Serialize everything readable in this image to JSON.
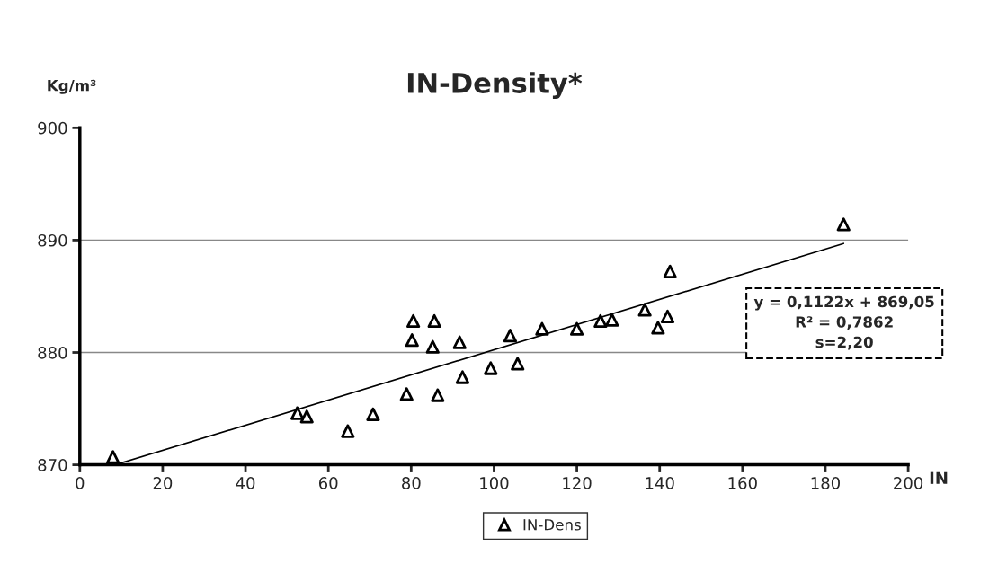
{
  "chart_data": {
    "type": "scatter",
    "title": "IN-Density*",
    "xlabel": "IN",
    "ylabel": "Kg/m³",
    "xlim": [
      0,
      200
    ],
    "xticks": [
      0,
      20,
      40,
      60,
      80,
      100,
      120,
      140,
      160,
      180,
      200
    ],
    "ylim": [
      870,
      900
    ],
    "yticks": [
      870,
      880,
      890,
      900
    ],
    "grid": "y",
    "legend": "bottom",
    "series": [
      {
        "name": "IN-Dens",
        "marker": "triangle",
        "color": "#000000",
        "x": [
          8,
          52.5,
          54.8,
          64.7,
          70.8,
          78.9,
          80.2,
          80.5,
          85.2,
          85.6,
          86.4,
          91.7,
          92.4,
          99.2,
          103.9,
          105.7,
          111.6,
          120.0,
          125.7,
          128.5,
          136.4,
          139.6,
          141.9,
          142.5,
          184.4
        ],
        "values": [
          870.7,
          874.6,
          874.3,
          873.0,
          874.5,
          876.3,
          881.1,
          882.8,
          880.5,
          882.8,
          876.2,
          880.9,
          877.8,
          878.6,
          881.5,
          879.0,
          882.1,
          882.1,
          882.8,
          882.9,
          883.8,
          882.2,
          883.2,
          887.2,
          891.4
        ]
      },
      {
        "type": "line",
        "color": "#000000",
        "x": [
          8.5,
          184.4
        ],
        "values": [
          870.0,
          889.7
        ]
      }
    ],
    "annotations": [
      "y = 0,1122x + 869,05",
      "R² = 0,7862",
      "s=2,20"
    ]
  }
}
